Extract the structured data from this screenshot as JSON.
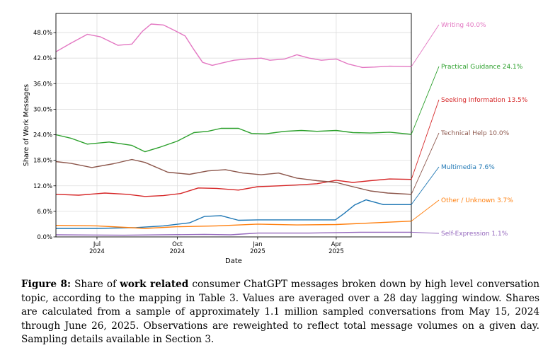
{
  "chart_data": {
    "type": "line",
    "title": "",
    "xlabel": "Date",
    "ylabel": "Share of Work Messages",
    "ylim": [
      0,
      52.5
    ],
    "grid": true,
    "x_range": [
      "2024-05-15",
      "2025-06-26"
    ],
    "yticks": [
      0,
      6,
      12,
      18,
      24,
      30,
      36,
      42,
      48
    ],
    "ytick_labels": [
      "0.0%",
      "6.0%",
      "12.0%",
      "18.0%",
      "24.0%",
      "30.0%",
      "36.0%",
      "42.0%",
      "48.0%"
    ],
    "xticks": [
      {
        "date": "2024-07-01",
        "line1": "Jul",
        "line2": "2024"
      },
      {
        "date": "2024-10-01",
        "line1": "Oct",
        "line2": "2024"
      },
      {
        "date": "2025-01-01",
        "line1": "Jan",
        "line2": "2025"
      },
      {
        "date": "2025-04-01",
        "line1": "Apr",
        "line2": "2025"
      }
    ],
    "series": [
      {
        "name": "Writing",
        "end_label": "Writing  40.0%",
        "color": "#e377c2",
        "x": [
          "2024-05-15",
          "2024-06-01",
          "2024-06-20",
          "2024-07-05",
          "2024-07-25",
          "2024-08-10",
          "2024-08-22",
          "2024-09-01",
          "2024-09-15",
          "2024-09-28",
          "2024-10-10",
          "2024-10-20",
          "2024-10-30",
          "2024-11-10",
          "2024-11-20",
          "2024-12-05",
          "2024-12-20",
          "2025-01-05",
          "2025-01-15",
          "2025-02-01",
          "2025-02-15",
          "2025-03-01",
          "2025-03-15",
          "2025-04-01",
          "2025-04-15",
          "2025-05-01",
          "2025-05-15",
          "2025-06-01",
          "2025-06-26"
        ],
        "values": [
          43.5,
          45.5,
          47.6,
          47.0,
          45.0,
          45.3,
          48.3,
          50.0,
          49.8,
          48.5,
          47.2,
          44.0,
          41.0,
          40.3,
          40.8,
          41.5,
          41.8,
          42.0,
          41.5,
          41.8,
          42.8,
          42.0,
          41.5,
          41.8,
          40.6,
          39.8,
          39.9,
          40.1,
          40.0
        ]
      },
      {
        "name": "Practical Guidance",
        "end_label": "Practical Guidance  24.1%",
        "color": "#2ca02c",
        "x": [
          "2024-05-15",
          "2024-06-01",
          "2024-06-20",
          "2024-07-15",
          "2024-08-10",
          "2024-08-25",
          "2024-09-10",
          "2024-10-01",
          "2024-10-20",
          "2024-11-05",
          "2024-11-20",
          "2024-12-10",
          "2024-12-25",
          "2025-01-10",
          "2025-02-01",
          "2025-02-20",
          "2025-03-10",
          "2025-04-01",
          "2025-04-20",
          "2025-05-10",
          "2025-06-01",
          "2025-06-26"
        ],
        "values": [
          24.0,
          23.2,
          21.8,
          22.3,
          21.5,
          20.0,
          21.0,
          22.5,
          24.5,
          24.8,
          25.5,
          25.5,
          24.3,
          24.2,
          24.8,
          25.0,
          24.8,
          25.0,
          24.5,
          24.4,
          24.6,
          24.1
        ]
      },
      {
        "name": "Seeking Information",
        "end_label": "Seeking Information  13.5%",
        "color": "#d62728",
        "x": [
          "2024-05-15",
          "2024-06-10",
          "2024-07-10",
          "2024-08-05",
          "2024-08-25",
          "2024-09-15",
          "2024-10-05",
          "2024-10-25",
          "2024-11-15",
          "2024-12-10",
          "2025-01-01",
          "2025-01-25",
          "2025-02-15",
          "2025-03-10",
          "2025-04-01",
          "2025-04-20",
          "2025-05-10",
          "2025-06-01",
          "2025-06-26"
        ],
        "values": [
          10.0,
          9.8,
          10.3,
          10.0,
          9.5,
          9.7,
          10.2,
          11.5,
          11.4,
          11.0,
          11.8,
          12.0,
          12.2,
          12.5,
          13.3,
          12.8,
          13.2,
          13.6,
          13.5
        ]
      },
      {
        "name": "Technical Help",
        "end_label": "Technical Help  10.0%",
        "color": "#8c564b",
        "x": [
          "2024-05-15",
          "2024-06-01",
          "2024-06-25",
          "2024-07-20",
          "2024-08-10",
          "2024-08-25",
          "2024-09-20",
          "2024-10-15",
          "2024-11-05",
          "2024-11-25",
          "2024-12-15",
          "2025-01-05",
          "2025-01-25",
          "2025-02-15",
          "2025-03-10",
          "2025-04-01",
          "2025-04-20",
          "2025-05-10",
          "2025-05-30",
          "2025-06-26"
        ],
        "values": [
          17.7,
          17.3,
          16.3,
          17.2,
          18.2,
          17.5,
          15.2,
          14.7,
          15.5,
          15.8,
          15.0,
          14.6,
          15.0,
          13.8,
          13.2,
          12.8,
          11.8,
          10.8,
          10.3,
          10.0
        ]
      },
      {
        "name": "Multimedia",
        "end_label": "Multimedia  7.6%",
        "color": "#1f77b4",
        "x": [
          "2024-05-15",
          "2024-07-01",
          "2024-08-15",
          "2024-09-15",
          "2024-10-15",
          "2024-11-01",
          "2024-11-20",
          "2024-12-10",
          "2025-01-01",
          "2025-02-01",
          "2025-03-10",
          "2025-03-31",
          "2025-04-10",
          "2025-04-22",
          "2025-05-05",
          "2025-05-25",
          "2025-06-26"
        ],
        "values": [
          2.0,
          2.0,
          2.2,
          2.6,
          3.3,
          4.8,
          5.0,
          3.9,
          4.0,
          4.0,
          4.0,
          4.0,
          5.5,
          7.5,
          8.7,
          7.6,
          7.6
        ]
      },
      {
        "name": "Other / Unknown",
        "end_label": "Other / Unknown  3.7%",
        "color": "#ff7f0e",
        "x": [
          "2024-05-15",
          "2024-07-01",
          "2024-08-25",
          "2024-10-01",
          "2024-11-15",
          "2025-01-01",
          "2025-02-15",
          "2025-04-01",
          "2025-05-15",
          "2025-06-26"
        ],
        "values": [
          2.7,
          2.6,
          2.0,
          2.4,
          2.6,
          3.0,
          2.8,
          2.9,
          3.3,
          3.7
        ]
      },
      {
        "name": "Self-Expression",
        "end_label": "Self-Expression  1.1%",
        "color": "#9467bd",
        "x": [
          "2024-05-15",
          "2024-08-01",
          "2024-11-01",
          "2024-12-01",
          "2025-01-01",
          "2025-03-01",
          "2025-05-01",
          "2025-06-26"
        ],
        "values": [
          0.5,
          0.4,
          0.6,
          0.5,
          0.9,
          0.9,
          1.1,
          1.1
        ]
      }
    ]
  },
  "caption": {
    "figure_label": "Figure 8:",
    "text_before_bold": " Share of ",
    "bold_text": "work related",
    "text_after_bold": " consumer ChatGPT messages broken down by high level conversation topic, according to the mapping in Table 3. Values are averaged over a 28 day lagging window. Shares are calculated from a sample of approximately 1.1 million sampled conversations from May 15, 2024 through June 26, 2025. Observations are reweighted to reflect total message volumes on a given day. Sampling details available in Section 3."
  }
}
